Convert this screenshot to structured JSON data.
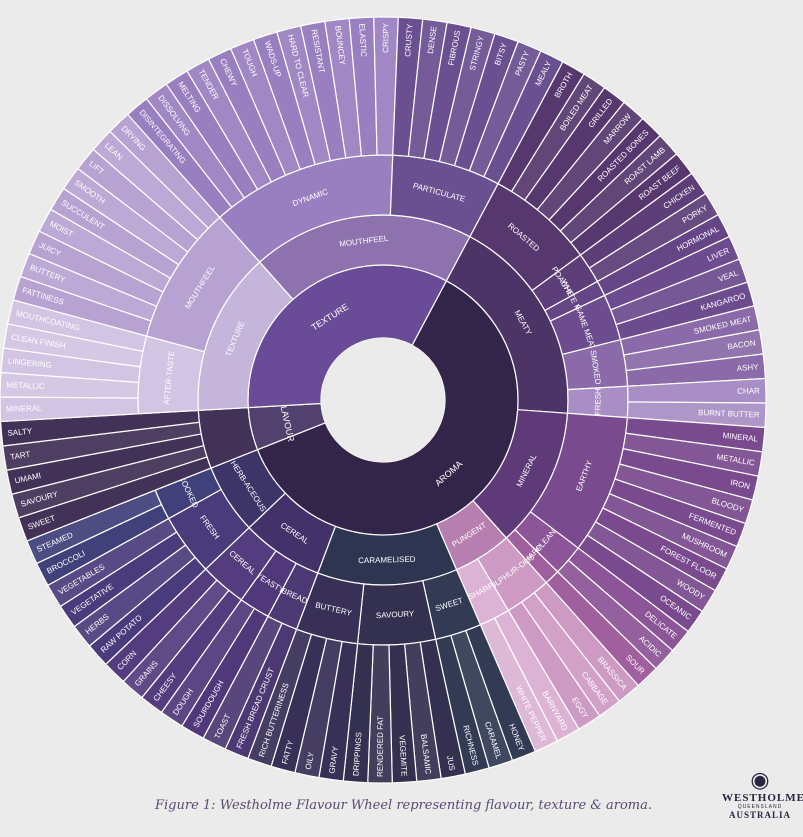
{
  "caption": "Figure 1: Westholme Flavour Wheel representing flavour, texture & aroma.",
  "logo": {
    "icon": "bull-head-icon",
    "line1": "WESTHOLME",
    "line2": "QUEENSLAND",
    "line3": "AUSTRALIA"
  },
  "colors": {
    "background": "#ebebeb",
    "ring_stroke": "#ffffff"
  },
  "wheel": [
    {
      "label": "AROMA",
      "color": "#33254a",
      "children": [
        {
          "label": "MEATY",
          "color": "#4d3466",
          "children": [
            {
              "label": "ROASTED",
              "color": "#56386e",
              "children": [
                "BROTH",
                "BOILED MEAT",
                "GRILLED",
                "MARROW",
                "ROASTED BONES",
                "ROAST LAMB",
                "ROAST BEEF"
              ]
            },
            {
              "label": "POACHED",
              "color": "#5d3e78",
              "children": [
                "CHICKEN",
                "PORKY"
              ]
            },
            {
              "label": "WHITE MEAT",
              "color": "#654585",
              "children": [
                "HORMONAL"
              ]
            },
            {
              "label": "GAME MEAT",
              "color": "#6c4b8e",
              "children": [
                "LIVER",
                "VEAL",
                "KANGAROO"
              ]
            },
            {
              "label": "SMOKED",
              "color": "#8a6aa8",
              "children": [
                "SMOKED MEAT",
                "BACON",
                "ASHY"
              ]
            },
            {
              "label": "FRESH",
              "color": "#a88ec4",
              "children": [
                "CHAR",
                "BURNT BUTTER"
              ]
            }
          ]
        },
        {
          "label": "MINERAL",
          "color": "#5f3a78",
          "children": [
            {
              "label": "EARTHY",
              "color": "#7a4a8e",
              "children": [
                "MINERAL",
                "METALLIC",
                "IRON",
                "BLOODY",
                "FERMENTED",
                "MUSHROOM",
                "FOREST FLOOR",
                "WOODY",
                "OCEANIC"
              ]
            },
            {
              "label": "CLEAN",
              "color": "#8c5597",
              "children": [
                "DELICATE",
                "ACIDIC"
              ]
            },
            {
              "label": "SHARP",
              "color": "#a0609e",
              "children": [
                "SOUR"
              ]
            }
          ]
        },
        {
          "label": "PUNGENT",
          "color": "#b77fb0",
          "children": [
            {
              "label": "SULPHUR-OUS",
              "color": "#cd9ac4",
              "children": [
                "BRASSICA",
                "CABBAGE",
                "EGGY"
              ]
            },
            {
              "label": "SHARP",
              "color": "#dcb3d4",
              "children": [
                "BARNYARD",
                "WHITE PEPPER"
              ]
            }
          ]
        },
        {
          "label": "CARAMELISED",
          "color": "#2e3550",
          "children": [
            {
              "label": "SWEET",
              "color": "#323a54",
              "children": [
                "HONEY",
                "CARAMEL",
                "RICHNESS"
              ]
            },
            {
              "label": "SAVOURY",
              "color": "#343050",
              "children": [
                "JUS",
                "BALSAMIC",
                "VEGEMITE",
                "RENDERED FAT",
                "DRIPPINGS"
              ]
            },
            {
              "label": "BUTTERY",
              "color": "#383056",
              "children": [
                "GRAVY",
                "OILY",
                "FATTY",
                "RICH BUTTERINESS"
              ]
            }
          ]
        },
        {
          "label": "CEREAL",
          "color": "#43326a",
          "children": [
            {
              "label": "BREAD",
              "color": "#4c3872",
              "children": [
                "FRESH BREAD CRUST",
                "TOAST"
              ]
            },
            {
              "label": "YEASTY",
              "color": "#50387a",
              "children": [
                "SOURDOUGH",
                "DOUGH"
              ]
            },
            {
              "label": "CEREAL",
              "color": "#543c7e",
              "children": [
                "CHEESY",
                "GRAINS",
                "CORN"
              ]
            }
          ]
        },
        {
          "label": "HERB-ACEOUS",
          "color": "#3d3468",
          "children": [
            {
              "label": "FRESH",
              "color": "#4a3c7c",
              "children": [
                "RAW POTATO",
                "HERBS",
                "VEGETATIVE",
                "VEGETABLES"
              ]
            },
            {
              "label": "COOKED",
              "color": "#40407a",
              "children": [
                "BROCCOLI",
                "STEAMED"
              ]
            }
          ]
        }
      ]
    },
    {
      "label": "FLAVOUR",
      "color": "#52406e",
      "children": [
        {
          "label": "",
          "color": "#433258",
          "children": [
            "SWEET",
            "SAVOURY",
            "UMAMI",
            "TART",
            "SALTY"
          ]
        }
      ]
    },
    {
      "label": "TEXTURE",
      "color": "#6a4b98",
      "children": [
        {
          "label": "TEXTURE",
          "color": "#c5b5da",
          "children": [
            {
              "label": "AFTER-TASTE",
              "color": "#d2c4e3",
              "children": [
                "MINERAL",
                "METALLIC",
                "LINGERING",
                "CLEAN FINISH",
                "MOUTHCOATING"
              ]
            },
            {
              "label": "MOUTHFEEL",
              "color": "#b7a2d2",
              "children": [
                "FATTINESS",
                "BUTTERY",
                "JUICY",
                "MOIST",
                "SUCCULENT",
                "SMOOTH",
                "LIFT",
                "LEAN",
                "DRYING"
              ]
            }
          ]
        },
        {
          "label": "MOUTHFEEL",
          "color": "#8d72ae",
          "children": [
            {
              "label": "DYNAMIC",
              "color": "#9a7fc0",
              "children": [
                "DISINTEGRATING",
                "DISSOLVING",
                "MELTING",
                "TENDER",
                "CHEWY",
                "TOUGH",
                "WADS-UP",
                "HARD TO CLEAR",
                "RESISTANT",
                "BOUNCEY",
                "ELASTIC",
                "CRISPY"
              ]
            },
            {
              "label": "PARTICULATE",
              "color": "#6b5091",
              "children": [
                "CRUSTY",
                "DENSE",
                "FIBROUS",
                "STRINGY",
                "BITSY",
                "PASTY",
                "MEALY"
              ]
            }
          ]
        }
      ]
    }
  ]
}
